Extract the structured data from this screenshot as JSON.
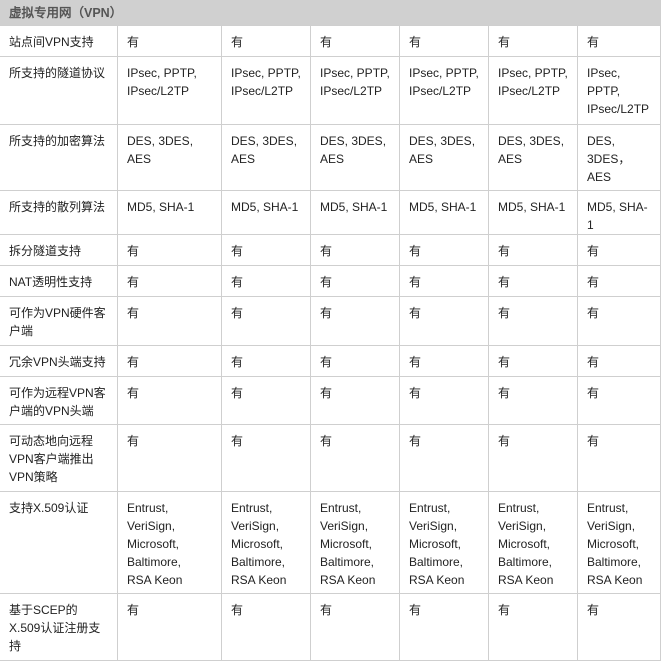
{
  "title": "虚拟专用网（VPN）",
  "rows": [
    {
      "label": "站点间VPN支持",
      "cells": [
        "有",
        "有",
        "有",
        "有",
        "有",
        "有"
      ]
    },
    {
      "label": "所支持的隧道协议",
      "cells": [
        "IPsec, PPTP,\nIPsec/L2TP",
        "IPsec, PPTP,\nIPsec/L2TP",
        "IPsec, PPTP,\nIPsec/L2TP",
        "IPsec, PPTP,\nIPsec/L2TP",
        "IPsec, PPTP,\nIPsec/L2TP",
        "IPsec,\nPPTP,\nIPsec/L2TP"
      ]
    },
    {
      "label": "所支持的加密算法",
      "cells": [
        "DES, 3DES,\nAES",
        "DES, 3DES,\nAES",
        "DES, 3DES,\nAES",
        "DES, 3DES,\nAES",
        "DES, 3DES,\nAES",
        "DES,\n3DES，\nAES"
      ]
    },
    {
      "label": "所支持的散列算法",
      "cells": [
        "MD5, SHA-1",
        "MD5, SHA-1",
        "MD5, SHA-1",
        "MD5, SHA-1",
        "MD5, SHA-1",
        "MD5, SHA-1"
      ]
    },
    {
      "label": "拆分隧道支持",
      "cells": [
        "有",
        "有",
        "有",
        "有",
        "有",
        "有"
      ]
    },
    {
      "label": "NAT透明性支持",
      "cells": [
        "有",
        "有",
        "有",
        "有",
        "有",
        "有"
      ]
    },
    {
      "label": "可作为VPN硬件客\n户端",
      "cells": [
        "有",
        "有",
        "有",
        "有",
        "有",
        "有"
      ]
    },
    {
      "label": "冗余VPN头端支持",
      "cells": [
        "有",
        "有",
        "有",
        "有",
        "有",
        "有"
      ]
    },
    {
      "label": "可作为远程VPN客\n户端的VPN头端",
      "cells": [
        "有",
        "有",
        "有",
        "有",
        "有",
        "有"
      ]
    },
    {
      "label": "可动态地向远程\nVPN客户端推出\nVPN策略",
      "cells": [
        "有",
        "有",
        "有",
        "有",
        "有",
        "有"
      ]
    },
    {
      "label": "支持X.509认证",
      "cells": [
        "Entrust,\nVeriSign,\nMicrosoft,\nBaltimore,\nRSA Keon",
        "Entrust,\nVeriSign,\nMicrosoft,\nBaltimore,\nRSA Keon",
        "Entrust,\nVeriSign,\nMicrosoft,\nBaltimore,\nRSA Keon",
        "Entrust,\nVeriSign,\nMicrosoft,\nBaltimore,\nRSA Keon",
        "Entrust,\nVeriSign,\nMicrosoft,\nBaltimore,\nRSA Keon",
        "Entrust,\nVeriSign,\nMicrosoft,\nBaltimore,\nRSA Keon"
      ]
    },
    {
      "label": "基于SCEP的\nX.509认证注册支\n持",
      "cells": [
        "有",
        "有",
        "有",
        "有",
        "有",
        "有"
      ]
    }
  ]
}
